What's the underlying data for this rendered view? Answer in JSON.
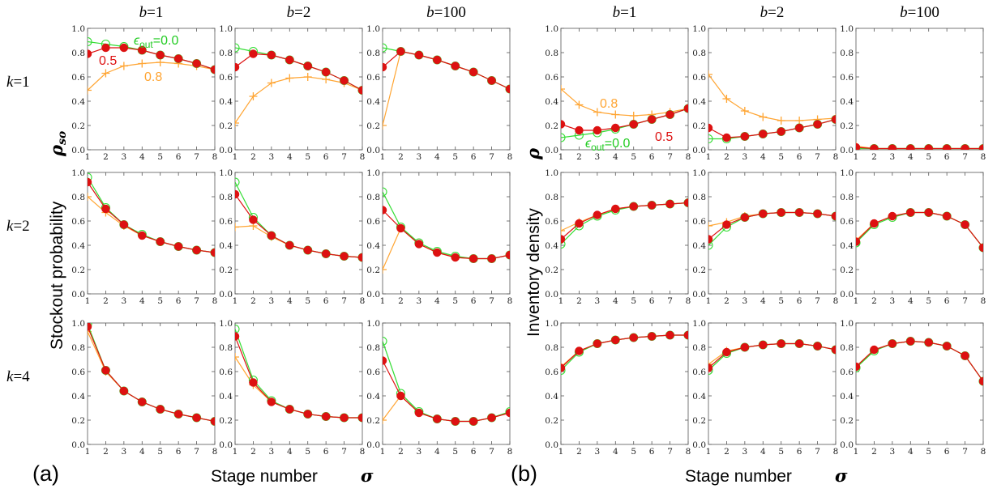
{
  "panel_labels": [
    "(a)",
    "(b)"
  ],
  "column_headers": [
    {
      "var": "b",
      "eq": "=1"
    },
    {
      "var": "b",
      "eq": "=2"
    },
    {
      "var": "b",
      "eq": "=100"
    }
  ],
  "row_headers": [
    {
      "var": "k",
      "eq": "=1"
    },
    {
      "var": "k",
      "eq": "=2"
    },
    {
      "var": "k",
      "eq": "=4"
    }
  ],
  "axis_text": {
    "xlabel": "Stage number",
    "xsym": "σ",
    "ylabel_a": "Stockout  probability",
    "ysym_a": "ρ",
    "ysym_a_sub": "so",
    "ylabel_b": "Inventory density",
    "ysym_b": "ρ"
  },
  "annotations": {
    "eps_prefix": "ϵ",
    "eps_sub": "out",
    "eps_value": "=0.0",
    "half": "0.5",
    "high": "0.8"
  },
  "colors": {
    "eps_0.0": "#33dd33",
    "eps_0.5": "#dd1111",
    "eps_0.8": "#ffa533"
  },
  "chart_data": {
    "type": "line",
    "x": [
      1,
      2,
      3,
      4,
      5,
      6,
      7,
      8
    ],
    "ylim": [
      0,
      1
    ],
    "ticks_y": [
      "0.0",
      "0.2",
      "0.4",
      "0.6",
      "0.8",
      "1.0"
    ],
    "ticks_x": [
      "1",
      "2",
      "3",
      "4",
      "5",
      "6",
      "7",
      "8"
    ],
    "grid": false,
    "legend": "inline annotations in top-row panels",
    "series_legend": [
      "0.0",
      "0.5",
      "0.8"
    ],
    "panels": [
      {
        "group": "a",
        "row": 0,
        "col": 0,
        "series": [
          {
            "eps": "0.0",
            "values": [
              0.89,
              0.87,
              0.85,
              0.82,
              0.78,
              0.75,
              0.71,
              0.66
            ]
          },
          {
            "eps": "0.5",
            "values": [
              0.79,
              0.84,
              0.84,
              0.82,
              0.78,
              0.75,
              0.71,
              0.66
            ]
          },
          {
            "eps": "0.8",
            "values": [
              0.49,
              0.63,
              0.69,
              0.71,
              0.72,
              0.71,
              0.69,
              0.66
            ]
          }
        ]
      },
      {
        "group": "a",
        "row": 0,
        "col": 1,
        "series": [
          {
            "eps": "0.0",
            "values": [
              0.84,
              0.81,
              0.78,
              0.74,
              0.69,
              0.64,
              0.57,
              0.49
            ]
          },
          {
            "eps": "0.5",
            "values": [
              0.68,
              0.79,
              0.78,
              0.74,
              0.69,
              0.64,
              0.57,
              0.49
            ]
          },
          {
            "eps": "0.8",
            "values": [
              0.22,
              0.44,
              0.55,
              0.59,
              0.6,
              0.58,
              0.55,
              0.49
            ]
          }
        ]
      },
      {
        "group": "a",
        "row": 0,
        "col": 2,
        "series": [
          {
            "eps": "0.0",
            "values": [
              0.84,
              0.81,
              0.78,
              0.74,
              0.69,
              0.64,
              0.57,
              0.5
            ]
          },
          {
            "eps": "0.5",
            "values": [
              0.68,
              0.81,
              0.78,
              0.74,
              0.69,
              0.64,
              0.57,
              0.5
            ]
          },
          {
            "eps": "0.8",
            "values": [
              0.2,
              0.81,
              0.78,
              0.74,
              0.69,
              0.64,
              0.57,
              0.5
            ]
          }
        ]
      },
      {
        "group": "a",
        "row": 1,
        "col": 0,
        "series": [
          {
            "eps": "0.0",
            "values": [
              0.96,
              0.71,
              0.57,
              0.49,
              0.43,
              0.39,
              0.36,
              0.34
            ]
          },
          {
            "eps": "0.5",
            "values": [
              0.92,
              0.7,
              0.57,
              0.48,
              0.43,
              0.39,
              0.36,
              0.34
            ]
          },
          {
            "eps": "0.8",
            "values": [
              0.8,
              0.67,
              0.56,
              0.48,
              0.43,
              0.39,
              0.36,
              0.34
            ]
          }
        ]
      },
      {
        "group": "a",
        "row": 1,
        "col": 1,
        "series": [
          {
            "eps": "0.0",
            "values": [
              0.92,
              0.63,
              0.48,
              0.4,
              0.36,
              0.33,
              0.31,
              0.3
            ]
          },
          {
            "eps": "0.5",
            "values": [
              0.82,
              0.61,
              0.48,
              0.4,
              0.36,
              0.33,
              0.31,
              0.3
            ]
          },
          {
            "eps": "0.8",
            "values": [
              0.55,
              0.56,
              0.47,
              0.4,
              0.36,
              0.33,
              0.31,
              0.3
            ]
          }
        ]
      },
      {
        "group": "a",
        "row": 1,
        "col": 2,
        "series": [
          {
            "eps": "0.0",
            "values": [
              0.84,
              0.55,
              0.42,
              0.35,
              0.31,
              0.29,
              0.29,
              0.32
            ]
          },
          {
            "eps": "0.5",
            "values": [
              0.69,
              0.54,
              0.41,
              0.34,
              0.3,
              0.29,
              0.29,
              0.32
            ]
          },
          {
            "eps": "0.8",
            "values": [
              0.2,
              0.54,
              0.41,
              0.34,
              0.3,
              0.29,
              0.29,
              0.32
            ]
          }
        ]
      },
      {
        "group": "a",
        "row": 2,
        "col": 0,
        "series": [
          {
            "eps": "0.0",
            "values": [
              0.99,
              0.61,
              0.44,
              0.35,
              0.29,
              0.25,
              0.22,
              0.19
            ]
          },
          {
            "eps": "0.5",
            "values": [
              0.97,
              0.61,
              0.44,
              0.35,
              0.29,
              0.25,
              0.22,
              0.19
            ]
          },
          {
            "eps": "0.8",
            "values": [
              0.93,
              0.6,
              0.44,
              0.35,
              0.29,
              0.25,
              0.22,
              0.19
            ]
          }
        ]
      },
      {
        "group": "a",
        "row": 2,
        "col": 1,
        "series": [
          {
            "eps": "0.0",
            "values": [
              0.95,
              0.53,
              0.36,
              0.29,
              0.25,
              0.23,
              0.22,
              0.22
            ]
          },
          {
            "eps": "0.5",
            "values": [
              0.89,
              0.51,
              0.35,
              0.29,
              0.25,
              0.23,
              0.22,
              0.22
            ]
          },
          {
            "eps": "0.8",
            "values": [
              0.72,
              0.49,
              0.35,
              0.29,
              0.25,
              0.23,
              0.22,
              0.22
            ]
          }
        ]
      },
      {
        "group": "a",
        "row": 2,
        "col": 2,
        "series": [
          {
            "eps": "0.0",
            "values": [
              0.85,
              0.42,
              0.27,
              0.21,
              0.19,
              0.19,
              0.22,
              0.27
            ]
          },
          {
            "eps": "0.5",
            "values": [
              0.69,
              0.4,
              0.26,
              0.21,
              0.19,
              0.19,
              0.22,
              0.26
            ]
          },
          {
            "eps": "0.8",
            "values": [
              0.2,
              0.4,
              0.26,
              0.21,
              0.19,
              0.19,
              0.22,
              0.26
            ]
          }
        ]
      },
      {
        "group": "b",
        "row": 0,
        "col": 0,
        "series": [
          {
            "eps": "0.0",
            "values": [
              0.1,
              0.12,
              0.14,
              0.17,
              0.21,
              0.25,
              0.29,
              0.34
            ]
          },
          {
            "eps": "0.5",
            "values": [
              0.21,
              0.16,
              0.16,
              0.18,
              0.21,
              0.25,
              0.29,
              0.34
            ]
          },
          {
            "eps": "0.8",
            "values": [
              0.5,
              0.37,
              0.31,
              0.29,
              0.28,
              0.29,
              0.31,
              0.34
            ]
          }
        ]
      },
      {
        "group": "b",
        "row": 0,
        "col": 1,
        "series": [
          {
            "eps": "0.0",
            "values": [
              0.09,
              0.09,
              0.11,
              0.13,
              0.15,
              0.18,
              0.21,
              0.25
            ]
          },
          {
            "eps": "0.5",
            "values": [
              0.18,
              0.1,
              0.11,
              0.13,
              0.15,
              0.18,
              0.21,
              0.25
            ]
          },
          {
            "eps": "0.8",
            "values": [
              0.62,
              0.42,
              0.32,
              0.27,
              0.24,
              0.24,
              0.25,
              0.26
            ]
          }
        ]
      },
      {
        "group": "b",
        "row": 0,
        "col": 2,
        "series": [
          {
            "eps": "0.0",
            "values": [
              0.01,
              0.01,
              0.01,
              0.01,
              0.01,
              0.01,
              0.01,
              0.01
            ]
          },
          {
            "eps": "0.5",
            "values": [
              0.02,
              0.01,
              0.01,
              0.01,
              0.01,
              0.01,
              0.01,
              0.01
            ]
          },
          {
            "eps": "0.8",
            "values": [
              0.03,
              0.01,
              0.01,
              0.01,
              0.01,
              0.01,
              0.01,
              0.01
            ]
          }
        ]
      },
      {
        "group": "b",
        "row": 1,
        "col": 0,
        "series": [
          {
            "eps": "0.0",
            "values": [
              0.41,
              0.56,
              0.64,
              0.69,
              0.72,
              0.73,
              0.74,
              0.75
            ]
          },
          {
            "eps": "0.5",
            "values": [
              0.45,
              0.58,
              0.65,
              0.7,
              0.72,
              0.73,
              0.74,
              0.75
            ]
          },
          {
            "eps": "0.8",
            "values": [
              0.52,
              0.59,
              0.65,
              0.7,
              0.72,
              0.73,
              0.74,
              0.75
            ]
          }
        ]
      },
      {
        "group": "b",
        "row": 1,
        "col": 1,
        "series": [
          {
            "eps": "0.0",
            "values": [
              0.4,
              0.55,
              0.63,
              0.66,
              0.67,
              0.67,
              0.66,
              0.64
            ]
          },
          {
            "eps": "0.5",
            "values": [
              0.45,
              0.57,
              0.63,
              0.66,
              0.67,
              0.67,
              0.66,
              0.64
            ]
          },
          {
            "eps": "0.8",
            "values": [
              0.56,
              0.59,
              0.64,
              0.66,
              0.67,
              0.67,
              0.66,
              0.64
            ]
          }
        ]
      },
      {
        "group": "b",
        "row": 1,
        "col": 2,
        "series": [
          {
            "eps": "0.0",
            "values": [
              0.42,
              0.57,
              0.63,
              0.67,
              0.67,
              0.64,
              0.57,
              0.38
            ]
          },
          {
            "eps": "0.5",
            "values": [
              0.43,
              0.58,
              0.64,
              0.67,
              0.67,
              0.64,
              0.57,
              0.38
            ]
          },
          {
            "eps": "0.8",
            "values": [
              0.44,
              0.58,
              0.64,
              0.67,
              0.67,
              0.64,
              0.57,
              0.38
            ]
          }
        ]
      },
      {
        "group": "b",
        "row": 2,
        "col": 0,
        "series": [
          {
            "eps": "0.0",
            "values": [
              0.61,
              0.76,
              0.83,
              0.86,
              0.88,
              0.89,
              0.9,
              0.9
            ]
          },
          {
            "eps": "0.5",
            "values": [
              0.63,
              0.77,
              0.83,
              0.86,
              0.88,
              0.89,
              0.9,
              0.9
            ]
          },
          {
            "eps": "0.8",
            "values": [
              0.64,
              0.77,
              0.83,
              0.86,
              0.88,
              0.89,
              0.9,
              0.9
            ]
          }
        ]
      },
      {
        "group": "b",
        "row": 2,
        "col": 1,
        "series": [
          {
            "eps": "0.0",
            "values": [
              0.61,
              0.75,
              0.8,
              0.82,
              0.83,
              0.83,
              0.81,
              0.78
            ]
          },
          {
            "eps": "0.5",
            "values": [
              0.63,
              0.76,
              0.8,
              0.82,
              0.83,
              0.83,
              0.81,
              0.78
            ]
          },
          {
            "eps": "0.8",
            "values": [
              0.66,
              0.77,
              0.8,
              0.82,
              0.83,
              0.83,
              0.81,
              0.78
            ]
          }
        ]
      },
      {
        "group": "b",
        "row": 2,
        "col": 2,
        "series": [
          {
            "eps": "0.0",
            "values": [
              0.63,
              0.77,
              0.83,
              0.85,
              0.84,
              0.81,
              0.73,
              0.52
            ]
          },
          {
            "eps": "0.5",
            "values": [
              0.64,
              0.78,
              0.83,
              0.85,
              0.84,
              0.81,
              0.73,
              0.52
            ]
          },
          {
            "eps": "0.8",
            "values": [
              0.64,
              0.78,
              0.83,
              0.85,
              0.84,
              0.81,
              0.73,
              0.52
            ]
          }
        ]
      }
    ]
  }
}
